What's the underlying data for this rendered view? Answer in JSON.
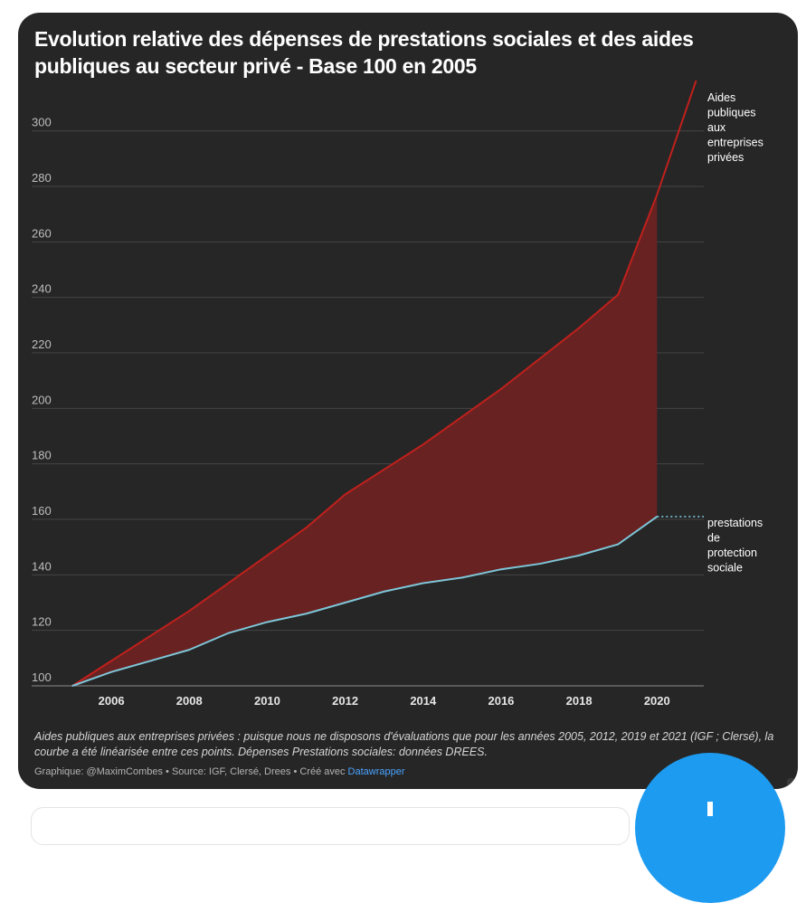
{
  "title": "Evolution relative des dépenses de prestations sociales et des aides publiques au secteur privé - Base 100 en 2005",
  "notes": "Aides publiques aux entreprises privées : puisque nous ne disposons d'évaluations que pour les années 2005, 2012, 2019 et 2021 (IGF ; Clersé), la courbe a été linéarisée entre ces points. Dépenses Prestations sociales: données DREES.",
  "credit_prefix": "Graphique: @MaximCombes • Source: IGF, Clersé, Drees • Créé avec ",
  "credit_link": "Datawrapper",
  "colors": {
    "background": "#262626",
    "aides": "#c0201c",
    "area": "#6b2222",
    "prestations": "#7ec6d8",
    "grid": "#444444",
    "tick": "#bdbdbd"
  },
  "chart_data": {
    "type": "line",
    "title": "Evolution relative des dépenses de prestations sociales et des aides publiques au secteur privé - Base 100 en 2005",
    "xlabel": "",
    "ylabel": "",
    "xlim": [
      2005,
      2021.2
    ],
    "ylim": [
      100,
      310
    ],
    "x_ticks": [
      2006,
      2008,
      2010,
      2012,
      2014,
      2016,
      2018,
      2020
    ],
    "y_ticks": [
      100,
      120,
      140,
      160,
      180,
      200,
      220,
      240,
      260,
      280,
      300
    ],
    "grid": true,
    "fill_between": {
      "from": 2005,
      "to": 2020
    },
    "series": [
      {
        "name": "Aides publiques aux entreprises privées",
        "label_lines": [
          "Aides",
          "publiques",
          "aux",
          "entreprises",
          "privées"
        ],
        "color": "#c0201c",
        "x": [
          2005,
          2006,
          2007,
          2008,
          2009,
          2010,
          2011,
          2012,
          2013,
          2014,
          2015,
          2016,
          2017,
          2018,
          2019,
          2020,
          2021
        ],
        "y": [
          100,
          109,
          118,
          127,
          137,
          147,
          157,
          169,
          178,
          187,
          197,
          207,
          218,
          229,
          241,
          277,
          318
        ]
      },
      {
        "name": "prestations de protection sociale",
        "label_lines": [
          "prestations",
          "de",
          "protection",
          "sociale"
        ],
        "color": "#7ec6d8",
        "x": [
          2005,
          2006,
          2007,
          2008,
          2009,
          2010,
          2011,
          2012,
          2013,
          2014,
          2015,
          2016,
          2017,
          2018,
          2019,
          2020
        ],
        "y": [
          100,
          105,
          109,
          113,
          119,
          123,
          126,
          130,
          134,
          137,
          139,
          142,
          144,
          147,
          151,
          161
        ],
        "projection": {
          "x": [
            2020,
            2021.2
          ],
          "y": [
            161,
            161
          ]
        }
      }
    ]
  }
}
